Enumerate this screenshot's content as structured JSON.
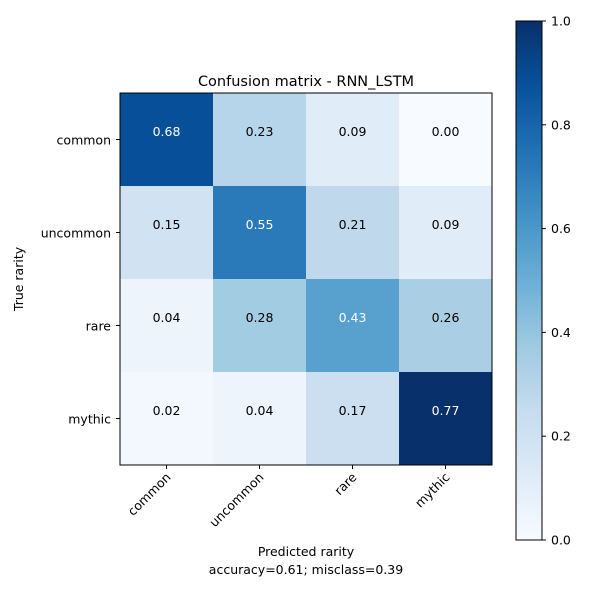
{
  "chart_data": {
    "type": "heatmap",
    "title": "Confusion matrix - RNN_LSTM",
    "xlabel": "Predicted rarity",
    "ylabel": "True rarity",
    "footer": "accuracy=0.61; misclass=0.39",
    "x_categories": [
      "common",
      "uncommon",
      "rare",
      "mythic"
    ],
    "y_categories": [
      "common",
      "uncommon",
      "rare",
      "mythic"
    ],
    "values": [
      [
        0.68,
        0.23,
        0.09,
        0.0
      ],
      [
        0.15,
        0.55,
        0.21,
        0.09
      ],
      [
        0.04,
        0.28,
        0.43,
        0.26
      ],
      [
        0.02,
        0.04,
        0.17,
        0.77
      ]
    ],
    "colormap": "Blues",
    "colorbar": {
      "range": [
        0.0,
        1.0
      ],
      "ticks": [
        "0.0",
        "0.2",
        "0.4",
        "0.6",
        "0.8",
        "1.0"
      ]
    },
    "grid": false
  }
}
